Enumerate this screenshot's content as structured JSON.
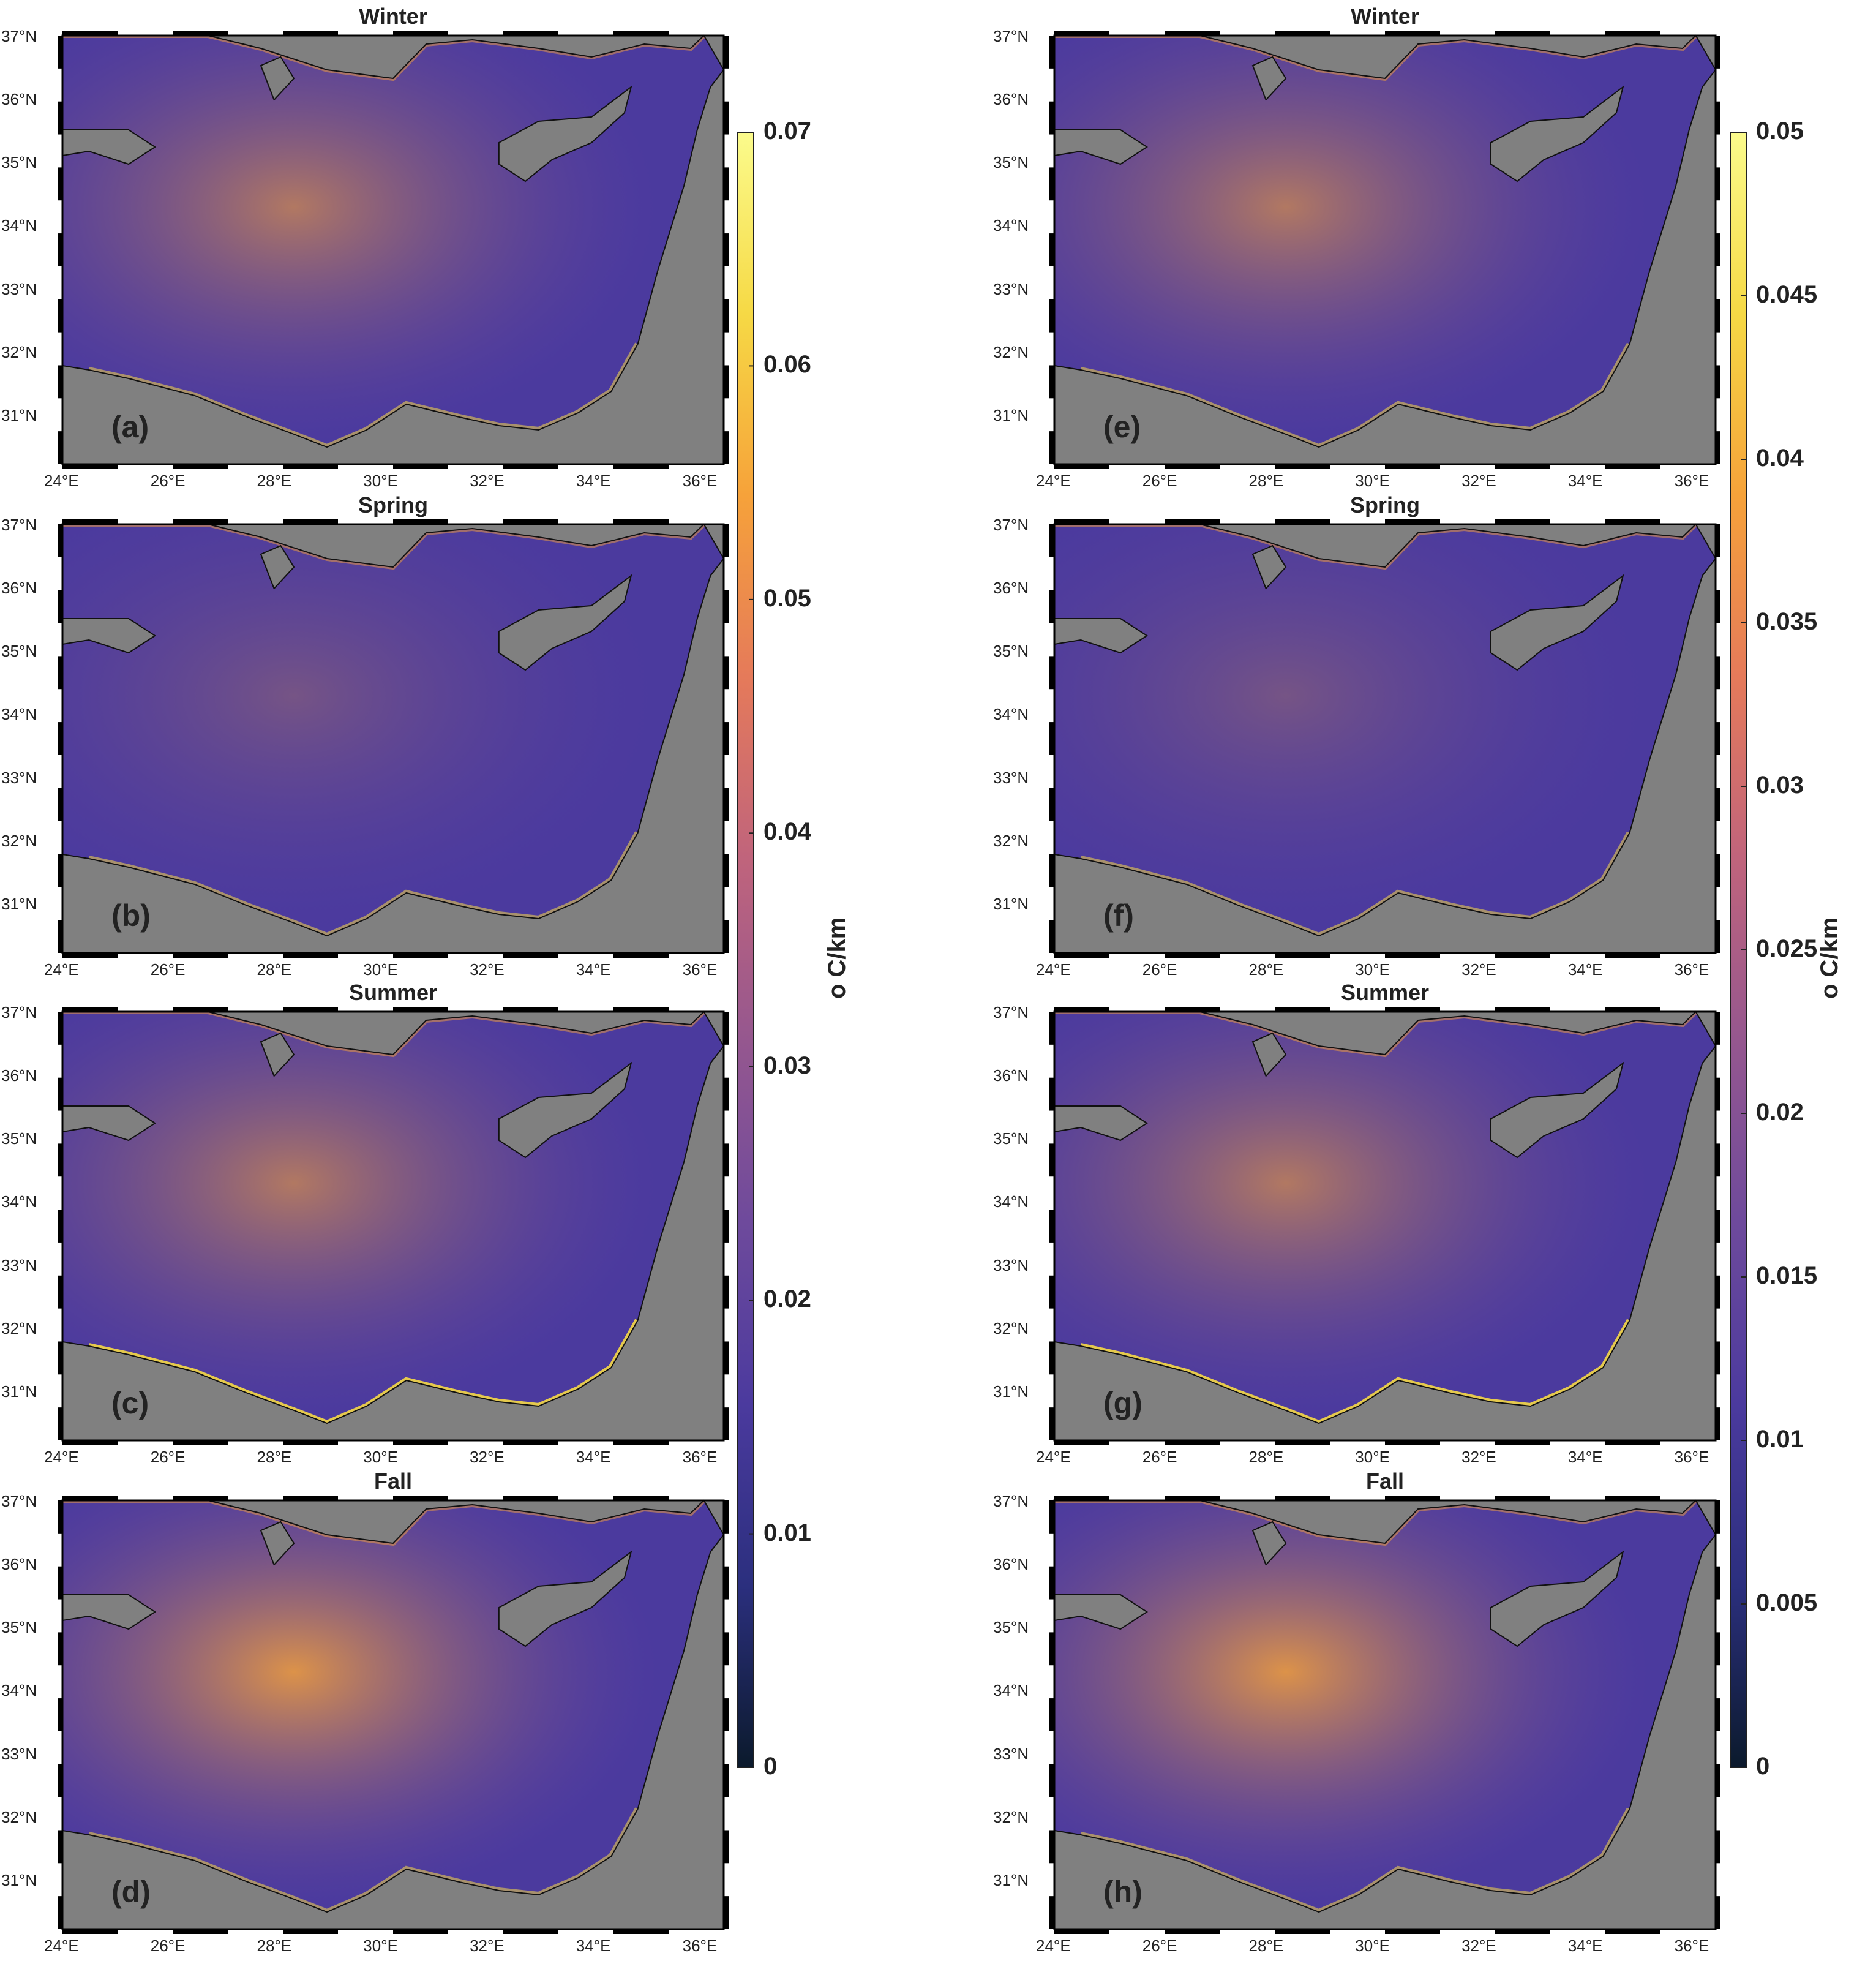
{
  "colorbar_colors": [
    "#0b1a2c",
    "#2b2f7e",
    "#4b3a9e",
    "#6e4a9c",
    "#95578f",
    "#c0647c",
    "#e57a5a",
    "#f6a23a",
    "#f6d945",
    "#fbfb8c"
  ],
  "land_color": "#808080",
  "panels": [
    {
      "id": "a",
      "label": "(a)",
      "season": "Winter",
      "column": 0,
      "row": 0
    },
    {
      "id": "b",
      "label": "(b)",
      "season": "Spring",
      "column": 0,
      "row": 1
    },
    {
      "id": "c",
      "label": "(c)",
      "season": "Summer",
      "column": 0,
      "row": 2
    },
    {
      "id": "d",
      "label": "(d)",
      "season": "Fall",
      "column": 0,
      "row": 3
    },
    {
      "id": "e",
      "label": "(e)",
      "season": "Winter",
      "column": 1,
      "row": 0
    },
    {
      "id": "f",
      "label": "(f)",
      "season": "Spring",
      "column": 1,
      "row": 1
    },
    {
      "id": "g",
      "label": "(g)",
      "season": "Summer",
      "column": 1,
      "row": 2
    },
    {
      "id": "h",
      "label": "(h)",
      "season": "Fall",
      "column": 1,
      "row": 3
    }
  ],
  "lat_ticks": [
    "37°N",
    "36°N",
    "35°N",
    "34°N",
    "33°N",
    "32°N",
    "31°N"
  ],
  "lon_ticks": [
    "24°E",
    "26°E",
    "28°E",
    "30°E",
    "32°E",
    "34°E",
    "36°E"
  ],
  "colorbars": [
    {
      "id": "left",
      "ticks": [
        "0.07",
        "0.06",
        "0.05",
        "0.04",
        "0.03",
        "0.02",
        "0.01",
        "0"
      ],
      "label": "o C/km"
    },
    {
      "id": "right",
      "ticks": [
        "0.05",
        "0.045",
        "0.04",
        "0.035",
        "0.03",
        "0.025",
        "0.02",
        "0.015",
        "0.01",
        "0.005",
        "0"
      ],
      "label": "o C/km"
    }
  ]
}
